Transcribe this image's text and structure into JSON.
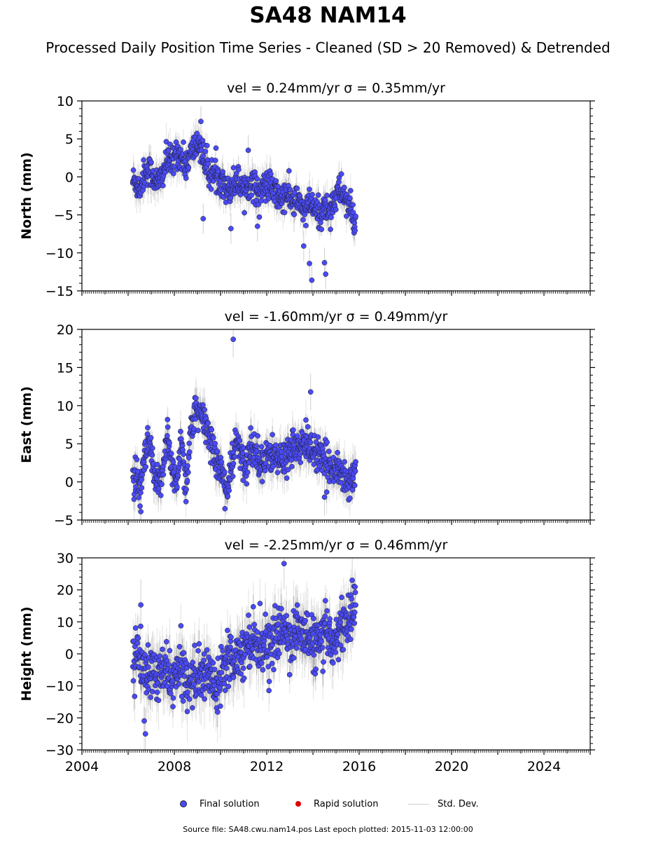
{
  "title": "SA48 NAM14",
  "subtitle": "Processed Daily Position Time Series - Cleaned (SD > 20 Removed) & Detrended",
  "legend": {
    "final": "Final solution",
    "rapid": "Rapid solution",
    "std": "Std. Dev."
  },
  "footer": "Source file: SA48.cwu.nam14.pos  Last epoch plotted: 2015-11-03 12:00:00",
  "colors": {
    "final": "#4a4af5",
    "rapid": "#e00000",
    "std": "#cfcfcf"
  },
  "chart_data": [
    {
      "type": "scatter",
      "title": "vel = 0.24mm/yr   σ = 0.35mm/yr",
      "ylabel": "North (mm)",
      "xlim": [
        2004,
        2026
      ],
      "ylim": [
        -15,
        10
      ],
      "yticks": [
        -15,
        -10,
        -5,
        0,
        5,
        10
      ],
      "xticks": [
        2004,
        2008,
        2012,
        2016,
        2020,
        2024
      ],
      "grid": false,
      "series": [
        {
          "name": "Final solution",
          "x": [
            2006.3,
            2006.5,
            2006.7,
            2006.9,
            2007.1,
            2007.3,
            2007.5,
            2007.7,
            2007.9,
            2008.1,
            2008.3,
            2008.5,
            2008.7,
            2008.9,
            2009.1,
            2009.3,
            2009.5,
            2009.7,
            2009.9,
            2010.1,
            2010.3,
            2010.5,
            2010.7,
            2010.9,
            2011.1,
            2011.3,
            2011.5,
            2011.7,
            2011.9,
            2012.1,
            2012.3,
            2012.5,
            2012.7,
            2012.9,
            2013.1,
            2013.3,
            2013.5,
            2013.7,
            2013.9,
            2014.1,
            2014.3,
            2014.5,
            2014.7,
            2014.9,
            2015.1,
            2015.3,
            2015.5,
            2015.7,
            2015.8
          ],
          "y": [
            -0.5,
            -1.5,
            0.5,
            1.0,
            0.0,
            -1.0,
            0.5,
            2.5,
            1.5,
            3.5,
            2.5,
            1.5,
            3.0,
            4.0,
            4.5,
            2.0,
            0.5,
            0.5,
            -0.5,
            0.0,
            -2.0,
            -1.0,
            -0.5,
            -1.0,
            -1.5,
            -0.5,
            -1.5,
            -2.0,
            -1.5,
            -1.0,
            -2.0,
            -2.5,
            -3.0,
            -2.0,
            -3.5,
            -3.0,
            -4.0,
            -4.5,
            -3.5,
            -4.5,
            -5.0,
            -4.0,
            -4.5,
            -3.0,
            -2.0,
            -2.0,
            -3.5,
            -5.0,
            -6.0
          ],
          "sd": 1.0
        }
      ],
      "outliers": [
        {
          "x": 2009.15,
          "y": 7.3
        },
        {
          "x": 2009.25,
          "y": -5.5
        },
        {
          "x": 2010.45,
          "y": -6.8
        },
        {
          "x": 2011.2,
          "y": 3.5
        },
        {
          "x": 2011.6,
          "y": -6.5
        },
        {
          "x": 2013.6,
          "y": -9.1
        },
        {
          "x": 2013.85,
          "y": -11.4
        },
        {
          "x": 2013.95,
          "y": -13.6
        },
        {
          "x": 2014.5,
          "y": -11.3
        },
        {
          "x": 2014.55,
          "y": -12.8
        }
      ]
    },
    {
      "type": "scatter",
      "title": "vel = -1.60mm/yr   σ = 0.49mm/yr",
      "ylabel": "East (mm)",
      "xlim": [
        2004,
        2026
      ],
      "ylim": [
        -5,
        20
      ],
      "yticks": [
        -5,
        0,
        5,
        10,
        15,
        20
      ],
      "xticks": [
        2004,
        2008,
        2012,
        2016,
        2020,
        2024
      ],
      "grid": false,
      "series": [
        {
          "name": "Final solution",
          "x": [
            2006.3,
            2006.5,
            2006.7,
            2006.9,
            2007.1,
            2007.3,
            2007.5,
            2007.7,
            2007.9,
            2008.1,
            2008.3,
            2008.5,
            2008.7,
            2008.9,
            2009.1,
            2009.3,
            2009.5,
            2009.7,
            2009.9,
            2010.1,
            2010.3,
            2010.5,
            2010.7,
            2010.9,
            2011.1,
            2011.3,
            2011.5,
            2011.7,
            2011.9,
            2012.1,
            2012.3,
            2012.5,
            2012.7,
            2012.9,
            2013.1,
            2013.3,
            2013.5,
            2013.7,
            2013.9,
            2014.1,
            2014.3,
            2014.5,
            2014.7,
            2014.9,
            2015.1,
            2015.3,
            2015.5,
            2015.7,
            2015.8
          ],
          "y": [
            0.5,
            -1.5,
            2.5,
            5.5,
            1.0,
            -1.0,
            2.0,
            6.5,
            1.0,
            0.0,
            6.0,
            -1.0,
            6.5,
            9.0,
            8.5,
            8.0,
            6.0,
            4.5,
            2.0,
            1.0,
            -1.5,
            2.5,
            5.5,
            3.0,
            1.5,
            5.0,
            4.0,
            3.5,
            2.0,
            4.0,
            3.5,
            3.0,
            2.5,
            3.5,
            5.0,
            4.5,
            4.0,
            5.5,
            4.5,
            4.0,
            3.0,
            2.5,
            2.0,
            2.5,
            1.5,
            1.0,
            0.0,
            0.5,
            1.5
          ],
          "sd": 1.2
        }
      ],
      "outliers": [
        {
          "x": 2010.55,
          "y": 18.7
        },
        {
          "x": 2013.9,
          "y": 11.8
        },
        {
          "x": 2006.55,
          "y": -3.9
        },
        {
          "x": 2014.5,
          "y": -2.0
        }
      ]
    },
    {
      "type": "scatter",
      "title": "vel = -2.25mm/yr   σ = 0.46mm/yr",
      "ylabel": "Height (mm)",
      "xlim": [
        2004,
        2026
      ],
      "ylim": [
        -30,
        30
      ],
      "yticks": [
        -30,
        -20,
        -10,
        0,
        10,
        20,
        30
      ],
      "xticks": [
        2004,
        2008,
        2012,
        2016,
        2020,
        2024
      ],
      "xticklabels": [
        "2004",
        "2008",
        "2012",
        "2016",
        "2020",
        "2024"
      ],
      "grid": false,
      "series": [
        {
          "name": "Final solution",
          "x": [
            2006.3,
            2006.5,
            2006.7,
            2006.9,
            2007.1,
            2007.3,
            2007.5,
            2007.7,
            2007.9,
            2008.1,
            2008.3,
            2008.5,
            2008.7,
            2008.9,
            2009.1,
            2009.3,
            2009.5,
            2009.7,
            2009.9,
            2010.1,
            2010.3,
            2010.5,
            2010.7,
            2010.9,
            2011.1,
            2011.3,
            2011.5,
            2011.7,
            2011.9,
            2012.1,
            2012.3,
            2012.5,
            2012.7,
            2012.9,
            2013.1,
            2013.3,
            2013.5,
            2013.7,
            2013.9,
            2014.1,
            2014.3,
            2014.5,
            2014.7,
            2014.9,
            2015.1,
            2015.3,
            2015.5,
            2015.7,
            2015.8
          ],
          "y": [
            -2.0,
            0.0,
            -6.0,
            -8.0,
            -4.0,
            -9.0,
            -5.0,
            -6.0,
            -8.0,
            -7.0,
            -4.0,
            -7.0,
            -9.0,
            -6.0,
            -8.0,
            -7.0,
            -5.0,
            -10.0,
            -8.0,
            -4.0,
            1.0,
            -2.0,
            1.0,
            -1.0,
            3.0,
            5.0,
            4.0,
            2.0,
            5.0,
            1.0,
            4.0,
            6.0,
            8.0,
            6.0,
            5.0,
            8.0,
            6.0,
            7.0,
            3.0,
            4.0,
            2.0,
            5.0,
            6.0,
            4.0,
            7.0,
            9.0,
            10.0,
            12.0,
            15.0
          ],
          "sd": 4.0
        }
      ],
      "outliers": [
        {
          "x": 2012.75,
          "y": 28.2
        },
        {
          "x": 2015.7,
          "y": 23.0
        },
        {
          "x": 2006.75,
          "y": -25.0
        },
        {
          "x": 2006.55,
          "y": 15.3
        }
      ]
    }
  ]
}
